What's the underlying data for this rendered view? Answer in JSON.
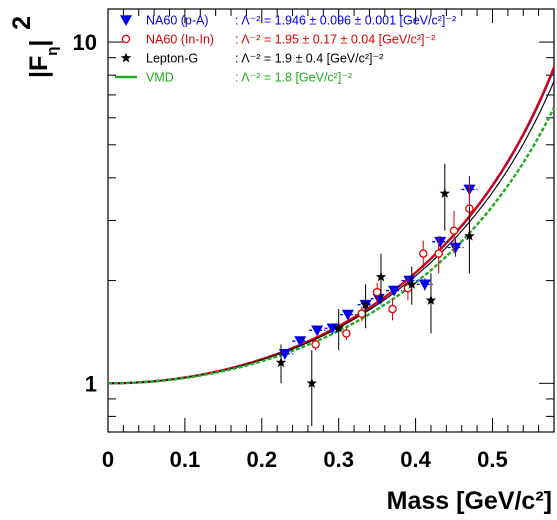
{
  "chart_data": {
    "type": "scatter",
    "title": "",
    "xlabel": "Mass  [GeV/c²]",
    "ylabel": "|F_η|²",
    "ylabel_main": "|F",
    "ylabel_sub": "η",
    "ylabel_tail": "|",
    "ylabel_sup": "2",
    "xlim": [
      0,
      0.58
    ],
    "ylim": [
      0.72,
      12.5
    ],
    "yscale": "log",
    "grid": false,
    "legend_position": "top-left",
    "x_ticks": [
      {
        "value": 0,
        "label": "0"
      },
      {
        "value": 0.1,
        "label": "0.1"
      },
      {
        "value": 0.2,
        "label": "0.2"
      },
      {
        "value": 0.3,
        "label": "0.3"
      },
      {
        "value": 0.4,
        "label": "0.4"
      },
      {
        "value": 0.5,
        "label": "0.5"
      }
    ],
    "y_ticks": [
      {
        "value": 1,
        "label": "1"
      },
      {
        "value": 10,
        "label": "10"
      }
    ],
    "colors": {
      "np": "#0000ee",
      "ni": "#e00000",
      "lg": "#000000",
      "vm": "#22aa22"
    },
    "legend": [
      {
        "key": "np",
        "label": "NA60 (p-A)",
        "marker": "triangle-down",
        "value": ": Λ⁻² = 1.946 ± 0.096 ± 0.001 [GeV/c²]⁻²"
      },
      {
        "key": "ni",
        "label": "NA60 (In-In)",
        "marker": "open-circle",
        "value": ": Λ⁻² = 1.95 ± 0.17 ± 0.04 [GeV/c²]⁻²"
      },
      {
        "key": "lg",
        "label": "Lepton-G",
        "marker": "star",
        "value": ": Λ⁻² = 1.9 ± 0.4 [GeV/c²]⁻²"
      },
      {
        "key": "vm",
        "label": "VMD",
        "marker": "line",
        "value": ": Λ⁻² = 1.8 [GeV/c²]⁻²"
      }
    ],
    "curves": [
      {
        "key": "np",
        "name": "NA60 (p-A)",
        "lambda_inv2": 1.946,
        "style": "solid"
      },
      {
        "key": "ni",
        "name": "NA60 (In-In)",
        "lambda_inv2": 1.95,
        "style": "solid"
      },
      {
        "key": "lg",
        "name": "Lepton-G",
        "lambda_inv2": 1.9,
        "style": "thin"
      },
      {
        "key": "vm",
        "name": "VMD",
        "lambda_inv2": 1.8,
        "style": "dashed"
      }
    ],
    "series": [
      {
        "key": "np",
        "name": "NA60 (p-A)",
        "marker": "triangle-down",
        "points": [
          {
            "x": 0.23,
            "y": 1.22,
            "ey": 0.04
          },
          {
            "x": 0.25,
            "y": 1.33,
            "ey": 0.04
          },
          {
            "x": 0.272,
            "y": 1.43,
            "ey": 0.04
          },
          {
            "x": 0.292,
            "y": 1.45,
            "ey": 0.04
          },
          {
            "x": 0.312,
            "y": 1.59,
            "ey": 0.05
          },
          {
            "x": 0.335,
            "y": 1.7,
            "ey": 0.05
          },
          {
            "x": 0.352,
            "y": 1.77,
            "ey": 0.05
          },
          {
            "x": 0.372,
            "y": 1.87,
            "ey": 0.06
          },
          {
            "x": 0.392,
            "y": 2.0,
            "ey": 0.07
          },
          {
            "x": 0.412,
            "y": 1.95,
            "ey": 0.08
          },
          {
            "x": 0.432,
            "y": 2.6,
            "ey": 0.1
          },
          {
            "x": 0.452,
            "y": 2.5,
            "ey": 0.15
          },
          {
            "x": 0.47,
            "y": 3.7,
            "ey": 0.35
          }
        ]
      },
      {
        "key": "ni",
        "name": "NA60 (In-In)",
        "marker": "open-circle",
        "points": [
          {
            "x": 0.27,
            "y": 1.3,
            "ey": 0.05
          },
          {
            "x": 0.31,
            "y": 1.4,
            "ey": 0.06
          },
          {
            "x": 0.33,
            "y": 1.6,
            "ey": 0.08
          },
          {
            "x": 0.35,
            "y": 1.85,
            "ey": 0.12
          },
          {
            "x": 0.37,
            "y": 1.65,
            "ey": 0.12
          },
          {
            "x": 0.39,
            "y": 1.9,
            "ey": 0.15
          },
          {
            "x": 0.41,
            "y": 2.4,
            "ey": 0.22
          },
          {
            "x": 0.43,
            "y": 2.4,
            "ey": 0.3
          },
          {
            "x": 0.45,
            "y": 2.8,
            "ey": 0.4
          },
          {
            "x": 0.47,
            "y": 3.25,
            "ey": 0.6
          }
        ]
      },
      {
        "key": "lg",
        "name": "Lepton-G",
        "marker": "star",
        "points": [
          {
            "x": 0.225,
            "y": 1.15,
            "ey": 0.15
          },
          {
            "x": 0.265,
            "y": 1.0,
            "ey": 0.25
          },
          {
            "x": 0.3,
            "y": 1.45,
            "ey": 0.2
          },
          {
            "x": 0.335,
            "y": 1.7,
            "ey": 0.25
          },
          {
            "x": 0.355,
            "y": 2.05,
            "ey": 0.35
          },
          {
            "x": 0.395,
            "y": 1.95,
            "ey": 0.25
          },
          {
            "x": 0.42,
            "y": 1.75,
            "ey": 0.35
          },
          {
            "x": 0.438,
            "y": 3.6,
            "ey": 0.8
          },
          {
            "x": 0.47,
            "y": 2.7,
            "ey": 0.6
          }
        ]
      }
    ]
  }
}
